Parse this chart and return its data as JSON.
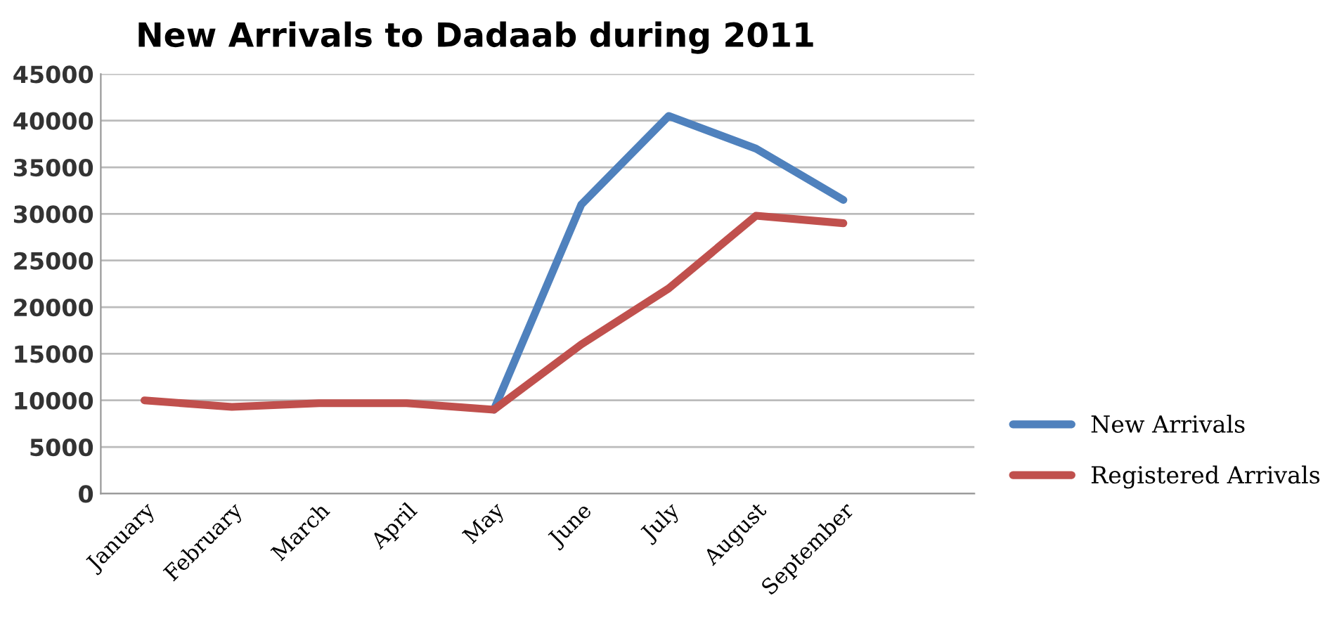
{
  "chart_data": {
    "type": "line",
    "title": "New Arrivals to Dadaab during 2011",
    "categories": [
      "January",
      "February",
      "March",
      "April",
      "May",
      "June",
      "July",
      "August",
      "September"
    ],
    "series": [
      {
        "name": "New Arrivals",
        "color": "#4f81bd",
        "values": [
          null,
          null,
          null,
          null,
          9000,
          31000,
          40500,
          37000,
          31500
        ]
      },
      {
        "name": "Registered Arrivals",
        "color": "#c0504d",
        "values": [
          10000,
          9300,
          9700,
          9700,
          9000,
          16000,
          22000,
          29800,
          29000
        ]
      }
    ],
    "ylim": [
      0,
      45000
    ],
    "yticks": [
      0,
      5000,
      10000,
      15000,
      20000,
      25000,
      30000,
      35000,
      40000,
      45000
    ],
    "grid": "y",
    "legend": "right",
    "marker": "none",
    "line_style": "solid"
  }
}
